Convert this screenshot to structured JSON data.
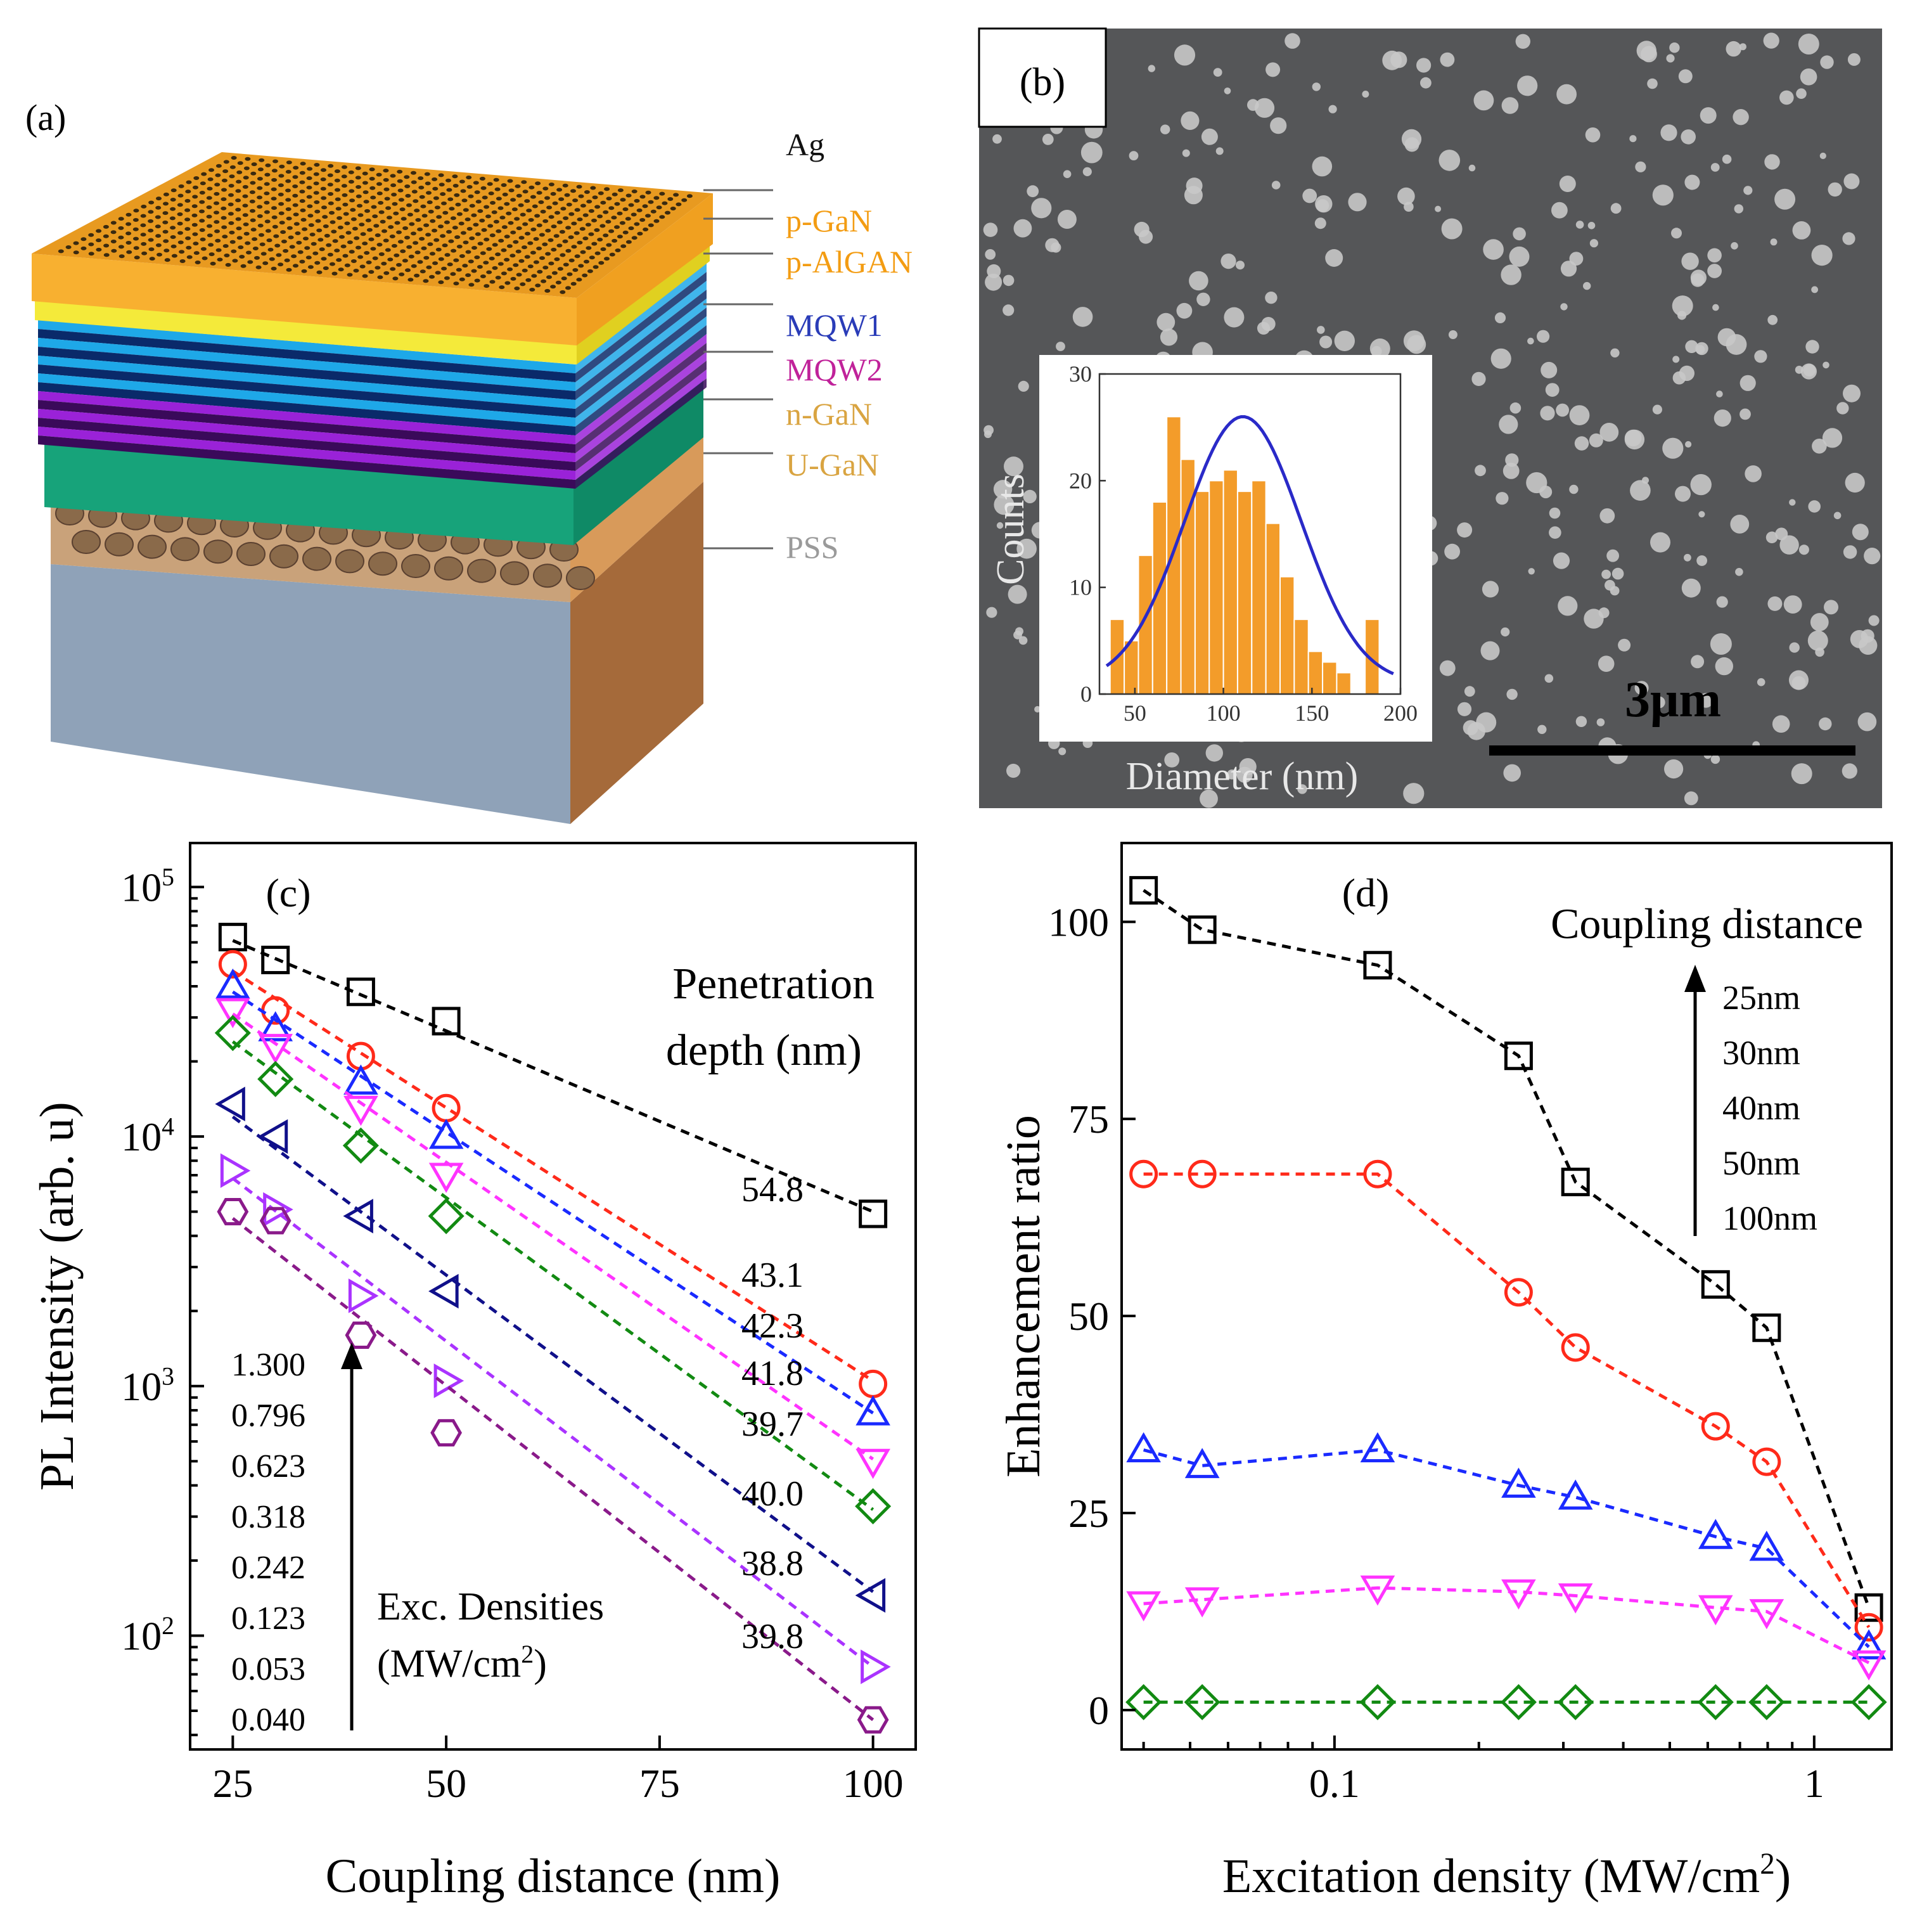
{
  "panel_a": {
    "label": "(a)",
    "layers": [
      {
        "name": "Ag",
        "color": "#111111"
      },
      {
        "name": "p-GaN",
        "color": "#f39c12"
      },
      {
        "name": "p-AlGAN",
        "color": "#f39c12"
      },
      {
        "name": "MQW1",
        "color": "#2a3cb8"
      },
      {
        "name": "MQW2",
        "color": "#c0229a"
      },
      {
        "name": "n-GaN",
        "color": "#d9a441"
      },
      {
        "name": "U-GaN",
        "color": "#d9a441"
      },
      {
        "name": "PSS",
        "color": "#9a9a9a"
      }
    ]
  },
  "panel_b": {
    "label": "(b)",
    "scale_bar": "3μm",
    "inset": {
      "xlabel": "Diameter (nm)",
      "ylabel": "Counts"
    }
  },
  "chart_data": [
    {
      "id": "inset_histogram",
      "type": "bar",
      "title": "",
      "xlabel": "Diameter (nm)",
      "ylabel": "Counts",
      "bin_start": 40,
      "bin_width": 8,
      "values": [
        7,
        5,
        13,
        18,
        26,
        22,
        19,
        20,
        21,
        19,
        20,
        16,
        11,
        7,
        4,
        3,
        2,
        0,
        7
      ],
      "fit_curve": {
        "type": "gaussian",
        "center": 111,
        "sigma": 33,
        "amplitude": 25,
        "offset": 1
      },
      "xlim": [
        30,
        200
      ],
      "ylim": [
        0,
        30
      ],
      "xticks": [
        "50",
        "100",
        "150",
        "200"
      ],
      "yticks": [
        "0",
        "10",
        "20",
        "30"
      ],
      "bar_color": "#f39c2a",
      "fit_color": "#2a2ac8"
    },
    {
      "id": "panel_c",
      "label": "(c)",
      "type": "scatter",
      "xscale": "linear",
      "yscale": "log",
      "xlabel": "Coupling distance (nm)",
      "ylabel": "PL Intensity (arb. u)",
      "xlim": [
        20,
        105
      ],
      "ylim": [
        35,
        150000
      ],
      "xticks": [
        "25",
        "50",
        "75",
        "100"
      ],
      "yticks": [
        {
          "value": 100,
          "base": "10",
          "exp": "2"
        },
        {
          "value": 1000,
          "base": "10",
          "exp": "3"
        },
        {
          "value": 10000,
          "base": "10",
          "exp": "4"
        },
        {
          "value": 100000,
          "base": "10",
          "exp": "5"
        }
      ],
      "legend_title": [
        "Penetration",
        "depth (nm)"
      ],
      "x": [
        25,
        30,
        40,
        50,
        100
      ],
      "series": [
        {
          "name": "1.300",
          "marker": "square",
          "color": "#000000",
          "values": [
            63000,
            51000,
            38000,
            29000,
            4900
          ],
          "fit": [
            61000,
            5000
          ],
          "depth": "54.8"
        },
        {
          "name": "0.796",
          "marker": "circle",
          "color": "#ff2a1a",
          "values": [
            49000,
            32000,
            21000,
            13000,
            1020
          ],
          "fit": [
            46000,
            1050
          ],
          "depth": "43.1"
        },
        {
          "name": "0.623",
          "marker": "triangle-up",
          "color": "#1a2aff",
          "values": [
            40000,
            27000,
            16500,
            10000,
            780
          ],
          "fit": [
            38000,
            780
          ],
          "depth": "42.3"
        },
        {
          "name": "0.318",
          "marker": "triangle-down",
          "color": "#ff33ff",
          "values": [
            32000,
            23000,
            13000,
            7000,
            500
          ],
          "fit": [
            31000,
            510
          ],
          "depth": "41.8"
        },
        {
          "name": "0.242",
          "marker": "diamond",
          "color": "#128a12",
          "values": [
            26000,
            17000,
            9200,
            4800,
            330
          ],
          "fit": [
            24000,
            320
          ],
          "depth": "39.7"
        },
        {
          "name": "0.123",
          "marker": "triangle-left",
          "color": "#10108a",
          "values": [
            13500,
            10000,
            4800,
            2400,
            145
          ],
          "fit": [
            12000,
            150
          ],
          "depth": "40.0"
        },
        {
          "name": "0.053",
          "marker": "triangle-right",
          "color": "#aa33ff",
          "values": [
            7300,
            5100,
            2300,
            1050,
            75
          ],
          "fit": [
            6800,
            75
          ],
          "depth": "38.8"
        },
        {
          "name": "0.040",
          "marker": "hexagon",
          "color": "#8a1a8a",
          "values": [
            5000,
            4600,
            1600,
            650,
            46
          ],
          "fit": [
            4700,
            46
          ],
          "depth": "39.8"
        }
      ],
      "exc_label": [
        "Exc. Densities",
        "(MW/cm",
        "2",
        ")"
      ]
    },
    {
      "id": "panel_d",
      "label": "(d)",
      "type": "line",
      "xscale": "log",
      "xlabel_parts": [
        "Excitation density (MW/cm",
        "2",
        ")"
      ],
      "ylabel": "Enhancement ratio",
      "xlim": [
        0.036,
        1.45
      ],
      "ylim": [
        -5,
        110
      ],
      "xticks": [
        {
          "value": 0.1,
          "label": "0.1"
        },
        {
          "value": 1,
          "label": "1"
        }
      ],
      "yticks": [
        "0",
        "25",
        "50",
        "75",
        "100"
      ],
      "legend_title": "Coupling distance",
      "legend_items": [
        "25nm",
        "30nm",
        "40nm",
        "50nm",
        "100nm"
      ],
      "x": [
        0.04,
        0.053,
        0.123,
        0.242,
        0.318,
        0.623,
        0.796,
        1.3
      ],
      "series": [
        {
          "name": "25nm",
          "marker": "square",
          "color": "#000000",
          "values": [
            104,
            99,
            94.5,
            83,
            67,
            54,
            48.5,
            13
          ]
        },
        {
          "name": "30nm",
          "marker": "circle",
          "color": "#ff2a1a",
          "values": [
            68,
            68,
            68,
            53,
            46,
            36,
            31.5,
            10.5
          ]
        },
        {
          "name": "40nm",
          "marker": "triangle-up",
          "color": "#1a2aff",
          "values": [
            33,
            31,
            33,
            28.5,
            27,
            22,
            20.5,
            8
          ]
        },
        {
          "name": "50nm",
          "marker": "triangle-down",
          "color": "#ff33ff",
          "values": [
            13.5,
            14,
            15.5,
            15,
            14.5,
            13,
            12.5,
            6
          ]
        },
        {
          "name": "100nm",
          "marker": "diamond",
          "color": "#128a12",
          "values": [
            1,
            1,
            1,
            1,
            1,
            1,
            1,
            1
          ]
        }
      ]
    }
  ]
}
